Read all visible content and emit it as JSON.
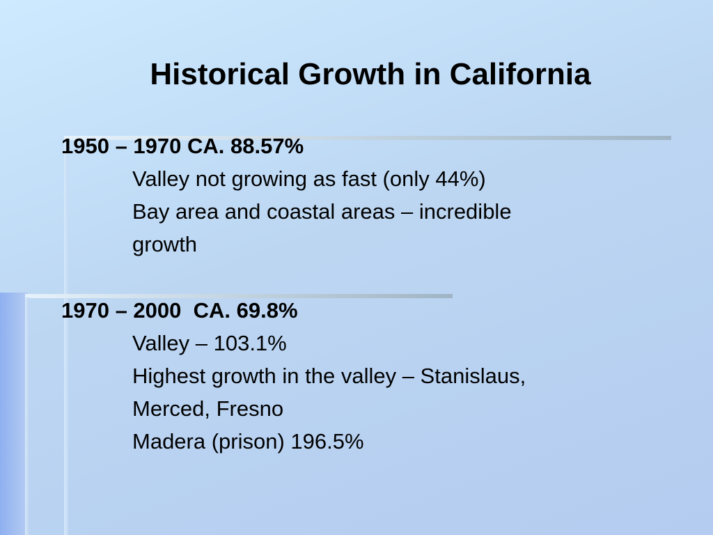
{
  "title": "Historical Growth in California",
  "sections": [
    {
      "heading": "1950 – 1970 CA. 88.57%",
      "items": [
        "Valley not growing as fast (only 44%)",
        "Bay area and coastal areas – incredible",
        "growth"
      ]
    },
    {
      "heading": "1970 – 2000  CA. 69.8%",
      "items": [
        "Valley – 103.1%",
        "Highest growth in the valley – Stanislaus,",
        "Merced, Fresno",
        "Madera (prison) 196.5%"
      ]
    }
  ]
}
